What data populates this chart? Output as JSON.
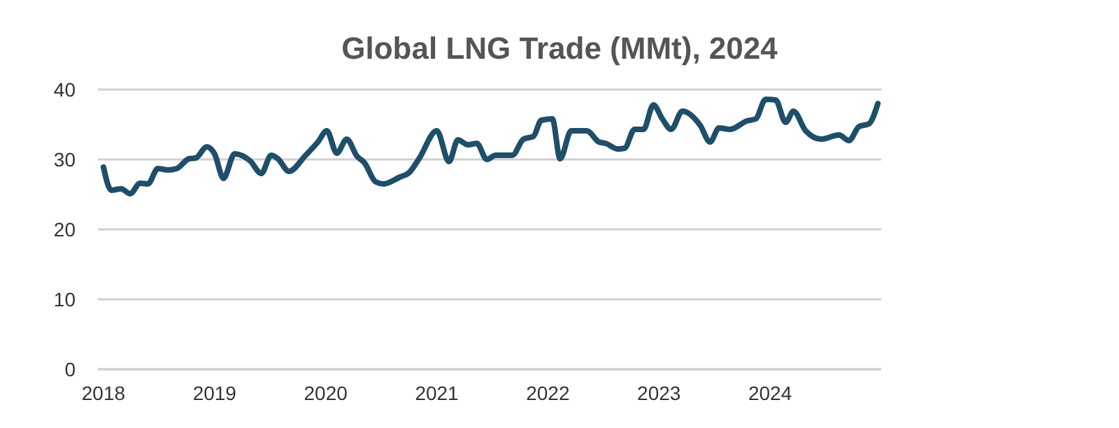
{
  "chart_data": {
    "type": "line",
    "title": "Global LNG Trade (MMt), 2024",
    "x": [
      2018.0,
      2018.07,
      2018.16,
      2018.24,
      2018.33,
      2018.4,
      2018.49,
      2018.58,
      2018.66,
      2018.77,
      2018.83,
      2018.93,
      2019.0,
      2019.08,
      2019.18,
      2019.32,
      2019.42,
      2019.51,
      2019.57,
      2019.67,
      2019.82,
      2019.93,
      2020.01,
      2020.1,
      2020.19,
      2020.28,
      2020.35,
      2020.45,
      2020.52,
      2020.67,
      2020.75,
      2020.84,
      2021.0,
      2021.11,
      2021.19,
      2021.28,
      2021.36,
      2021.45,
      2021.53,
      2021.68,
      2021.78,
      2021.87,
      2021.94,
      2022.04,
      2022.11,
      2022.21,
      2022.35,
      2022.46,
      2022.52,
      2022.63,
      2022.69,
      2022.78,
      2022.86,
      2022.95,
      2023.03,
      2023.11,
      2023.21,
      2023.37,
      2023.46,
      2023.54,
      2023.64,
      2023.79,
      2023.87,
      2023.96,
      2024.05,
      2024.14,
      2024.21,
      2024.32,
      2024.46,
      2024.62,
      2024.71,
      2024.8,
      2024.89,
      2024.97
    ],
    "series": [
      {
        "color": "#1f4e6b",
        "values": [
          28.9,
          25.6,
          25.8,
          25.1,
          26.6,
          26.5,
          28.7,
          28.5,
          28.7,
          30.1,
          30.2,
          31.8,
          30.8,
          27.3,
          30.8,
          29.8,
          28.0,
          30.6,
          30.1,
          28.3,
          30.6,
          32.5,
          34.1,
          30.9,
          32.9,
          30.5,
          29.5,
          26.8,
          26.5,
          27.5,
          28.1,
          30.1,
          34.1,
          29.7,
          32.8,
          32.1,
          32.3,
          30.0,
          30.6,
          30.6,
          32.9,
          33.3,
          35.6,
          35.8,
          30.1,
          34.1,
          34.1,
          32.5,
          32.3,
          31.5,
          31.6,
          34.3,
          34.3,
          37.8,
          35.8,
          34.3,
          36.9,
          34.9,
          32.5,
          34.5,
          34.3,
          35.5,
          35.8,
          38.6,
          38.5,
          35.3,
          36.9,
          34.1,
          32.9,
          33.5,
          32.7,
          34.7,
          35.1,
          38.0
        ]
      }
    ],
    "xlim": [
      2017.95,
      2025.0
    ],
    "xticks": [
      2018,
      2019,
      2020,
      2021,
      2022,
      2023,
      2024
    ],
    "ylim": [
      0,
      40
    ],
    "yticks": [
      0,
      10,
      20,
      30,
      40
    ],
    "grid": "y",
    "line_style": "solid"
  }
}
